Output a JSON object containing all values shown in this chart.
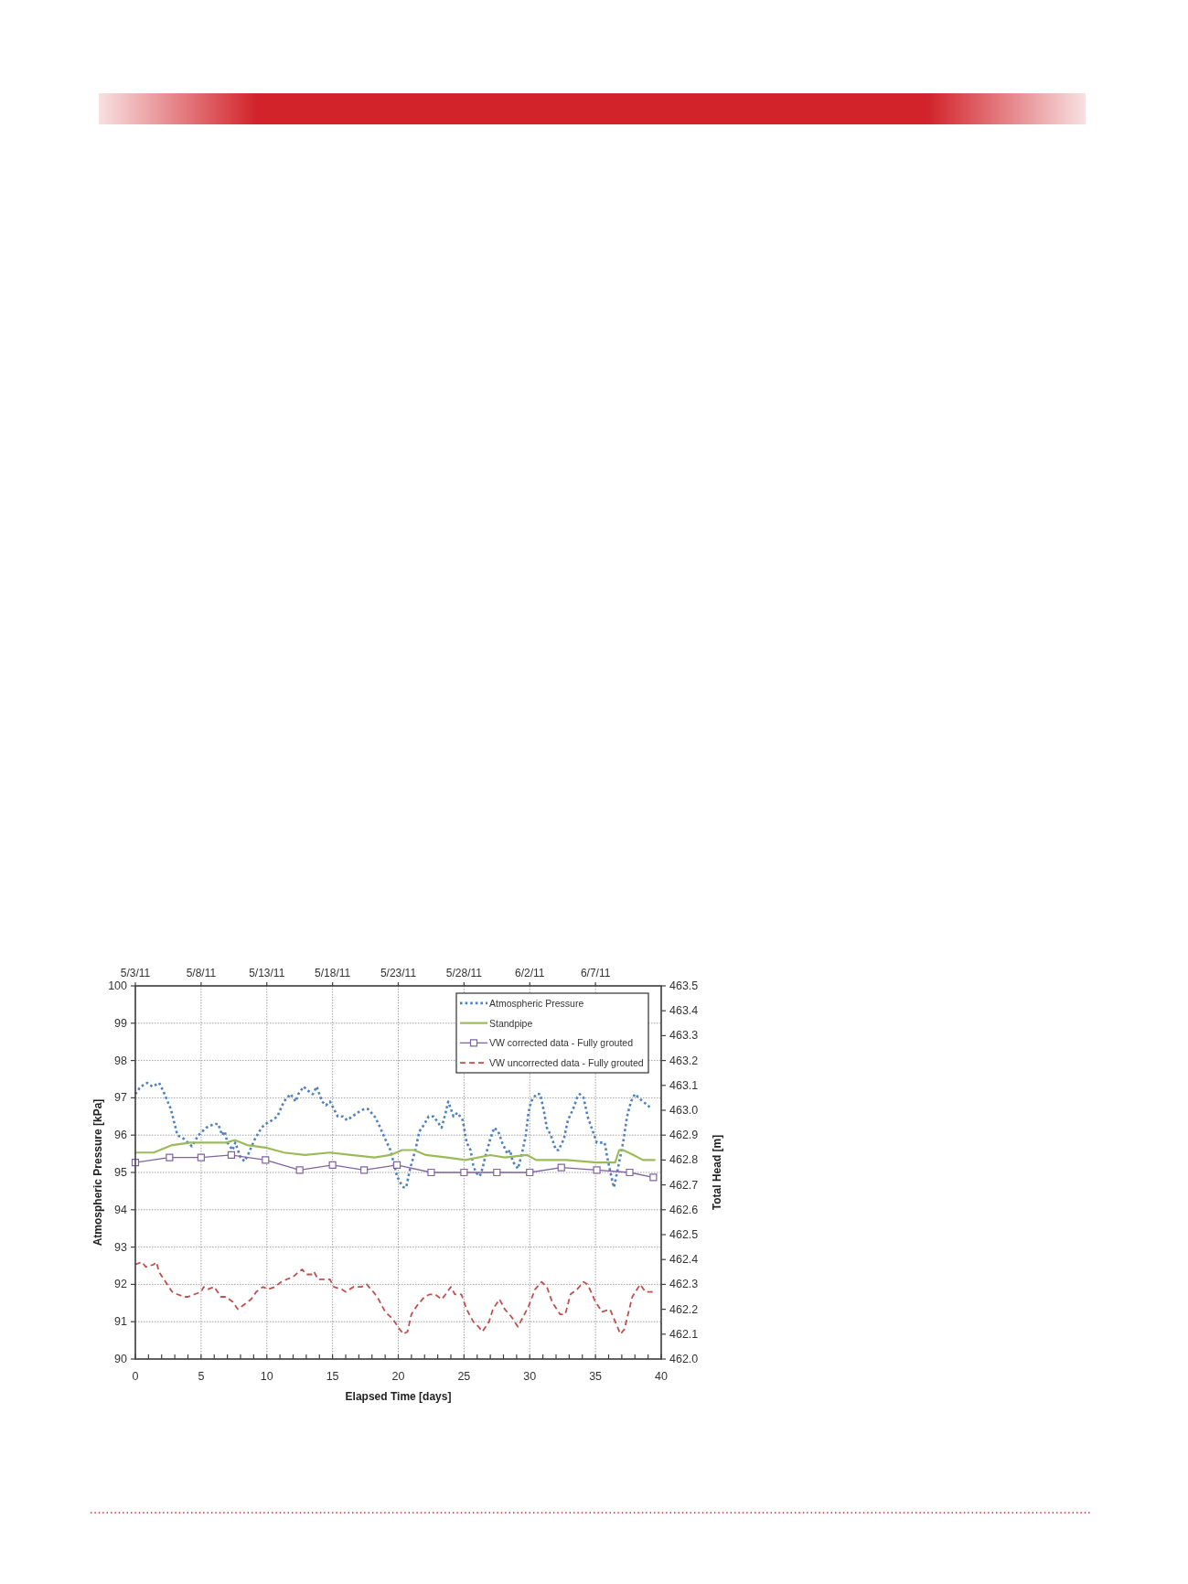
{
  "chart_data": {
    "type": "line",
    "xlabel": "Elapsed Time [days]",
    "ylabel": "Atmospheric Pressure [kPa]",
    "y2label": "Total Head [m]",
    "xlim": [
      0,
      40
    ],
    "xticks": [
      0,
      {
        "value": 1,
        "label": null
      },
      {
        "value": 2,
        "label": null
      },
      {
        "value": 3,
        "label": null
      },
      {
        "value": 4,
        "label": null
      },
      5,
      {
        "value": 6,
        "label": null
      },
      {
        "value": 7,
        "label": null
      },
      {
        "value": 8,
        "label": null
      },
      {
        "value": 9,
        "label": null
      },
      10,
      {
        "value": 11,
        "label": null
      },
      {
        "value": 12,
        "label": null
      },
      {
        "value": 13,
        "label": null
      },
      {
        "value": 14,
        "label": null
      },
      15,
      {
        "value": 16,
        "label": null
      },
      {
        "value": 17,
        "label": null
      },
      {
        "value": 18,
        "label": null
      },
      {
        "value": 19,
        "label": null
      },
      20,
      {
        "value": 21,
        "label": null
      },
      {
        "value": 22,
        "label": null
      },
      {
        "value": 23,
        "label": null
      },
      {
        "value": 24,
        "label": null
      },
      25,
      {
        "value": 26,
        "label": null
      },
      {
        "value": 27,
        "label": null
      },
      {
        "value": 28,
        "label": null
      },
      {
        "value": 29,
        "label": null
      },
      30,
      {
        "value": 31,
        "label": null
      },
      {
        "value": 32,
        "label": null
      },
      {
        "value": 33,
        "label": null
      },
      {
        "value": 34,
        "label": null
      },
      35,
      {
        "value": 36,
        "label": null
      },
      {
        "value": 37,
        "label": null
      },
      {
        "value": 38,
        "label": null
      },
      {
        "value": 39,
        "label": null
      },
      40
    ],
    "x2lim": [
      "--05-03",
      "--06-12"
    ],
    "x2ticks": [
      {
        "value": "--05-03",
        "label": "5/3/11"
      },
      {
        "value": "--05-08",
        "label": "5/8/11"
      },
      {
        "value": "--05-13",
        "label": "5/13/11"
      },
      {
        "value": "--05-18",
        "label": "5/18/11"
      },
      {
        "value": "--05-23",
        "label": "5/23/11"
      },
      {
        "value": "--05-28",
        "label": "5/28/11"
      },
      {
        "value": "--06-02",
        "label": "6/2/11"
      },
      {
        "value": "--06-07",
        "label": "6/7/11"
      }
    ],
    "ylim": [
      90,
      100
    ],
    "yticks": [
      90,
      91,
      92,
      93,
      94,
      95,
      96,
      97,
      98,
      99,
      100
    ],
    "y2lim": [
      462,
      463.5
    ],
    "y2ticks": [
      {
        "value": 462,
        "label": "462.0"
      },
      462.1,
      462.2,
      462.3,
      462.4,
      462.5,
      462.6,
      462.7,
      462.8,
      462.9,
      {
        "value": 463,
        "label": "463.0"
      },
      463.1,
      463.2,
      463.3,
      463.4,
      463.5
    ],
    "grid": true,
    "legend": "top right",
    "series": [
      {
        "name": "Atmospheric Pressure",
        "color": "#4f81bd",
        "line_style": "dotted",
        "x": [
          0,
          0.4,
          0.9,
          1.3,
          1.8,
          2.1,
          2.7,
          3.2,
          3.7,
          4.3,
          4.8,
          5.4,
          6,
          6.3,
          6.6,
          6.8,
          7,
          7.4,
          7.6,
          8,
          8.3,
          8.6,
          9.1,
          9.6,
          9.9,
          10.4,
          10.8,
          11.3,
          11.8,
          12.2,
          12.4,
          12.8,
          13.1,
          13.5,
          13.8,
          14.2,
          14.5,
          14.8,
          15.1,
          15.4,
          15.8,
          16.1,
          16.5,
          16.9,
          17.4,
          17.7,
          18.2,
          18.5,
          19,
          19.4,
          19.7,
          19.9,
          20.2,
          20.4,
          20.6,
          20.9,
          21.3,
          21.6,
          22,
          22.3,
          22.7,
          22.9,
          23.3,
          23.6,
          23.8,
          24.2,
          24.5,
          24.9,
          25.2,
          25.5,
          25.7,
          25.9,
          26.2,
          26.4,
          26.6,
          27,
          27.3,
          27.6,
          27.9,
          28.3,
          28.5,
          28.7,
          29.1,
          29.4,
          29.7,
          29.9,
          30.1,
          30.5,
          30.8,
          31.1,
          31.3,
          31.6,
          32,
          32.2,
          32.6,
          32.9,
          33.3,
          33.6,
          33.8,
          34.1,
          34.4,
          34.8,
          35.1,
          35.5,
          35.7,
          35.9,
          36.2,
          36.4,
          36.7,
          37.1,
          37.4,
          37.7,
          38,
          38.3,
          38.6,
          39,
          39.2
        ],
        "values": [
          97.1,
          97.3,
          97.4,
          97.3,
          97.4,
          97.2,
          96.7,
          96,
          95.9,
          95.7,
          96,
          96.2,
          96.3,
          96.3,
          96,
          96.1,
          95.8,
          95.6,
          95.8,
          95.4,
          95.3,
          95.5,
          95.9,
          96.2,
          96.3,
          96.4,
          96.5,
          96.9,
          97.1,
          96.9,
          97.1,
          97.3,
          97.2,
          97.1,
          97.3,
          96.9,
          96.8,
          96.9,
          96.7,
          96.5,
          96.5,
          96.4,
          96.5,
          96.6,
          96.7,
          96.7,
          96.5,
          96.3,
          95.9,
          95.6,
          95.2,
          94.9,
          94.7,
          94.6,
          94.6,
          95.1,
          95.6,
          96.1,
          96.3,
          96.5,
          96.5,
          96.4,
          96.2,
          96.6,
          96.9,
          96.5,
          96.6,
          96.4,
          95.8,
          95.6,
          95.2,
          95,
          94.9,
          95.1,
          95.4,
          95.9,
          96.2,
          96.1,
          95.8,
          95.5,
          95.6,
          95.3,
          95.1,
          95.5,
          96,
          96.6,
          96.9,
          97.1,
          97.1,
          96.6,
          96.2,
          96,
          95.6,
          95.6,
          95.9,
          96.4,
          96.7,
          97,
          97.1,
          97,
          96.5,
          96.1,
          95.8,
          95.8,
          95.8,
          95.4,
          94.9,
          94.6,
          95.1,
          95.8,
          96.5,
          96.9,
          97.1,
          97,
          96.9,
          96.8,
          96.7
        ]
      },
      {
        "name": "Standpipe",
        "color": "#9bbb59",
        "axis": "y2",
        "x": [
          0,
          1.4,
          2.8,
          4.2,
          5.5,
          6.9,
          7.6,
          8.5,
          9.9,
          11.3,
          12.9,
          14.8,
          16.4,
          18.2,
          19.4,
          20.3,
          21.2,
          22.1,
          23.7,
          25.1,
          27,
          28.1,
          29.8,
          30.5,
          32.8,
          35.1,
          36.5,
          36.8,
          37.1,
          37.9,
          38.6,
          39.5
        ],
        "values": [
          462.83,
          462.83,
          462.86,
          462.87,
          462.87,
          462.87,
          462.88,
          462.86,
          462.85,
          462.83,
          462.82,
          462.83,
          462.82,
          462.81,
          462.82,
          462.84,
          462.84,
          462.82,
          462.81,
          462.8,
          462.82,
          462.81,
          462.82,
          462.8,
          462.8,
          462.79,
          462.79,
          462.84,
          462.84,
          462.82,
          462.8,
          462.8
        ]
      },
      {
        "name": "VW corrected data - Fully grouted",
        "color": "#8064a2",
        "axis": "y2",
        "marker": "square",
        "x": [
          0,
          2.6,
          5,
          7.3,
          9.9,
          12.5,
          15,
          17.4,
          19.9,
          22.5,
          25,
          27.5,
          30,
          32.4,
          35.1,
          37.6,
          39.4
        ],
        "values": [
          462.79,
          462.81,
          462.81,
          462.82,
          462.8,
          462.76,
          462.78,
          462.76,
          462.78,
          462.75,
          462.75,
          462.75,
          462.75,
          462.77,
          462.76,
          462.75,
          462.73
        ]
      },
      {
        "name": "VW uncorrected data - Fully grouted",
        "color": "#c0504d",
        "axis": "y2",
        "line_style": "dashed",
        "x": [
          0,
          0.5,
          0.8,
          1.4,
          1.6,
          1.8,
          2.3,
          2.8,
          3.2,
          3.7,
          4,
          4.5,
          5,
          5.2,
          5.5,
          6,
          6.5,
          6.9,
          7.4,
          7.8,
          8.3,
          8.8,
          9.2,
          9.7,
          10.1,
          10.6,
          11.1,
          11.5,
          12,
          12.4,
          12.7,
          13,
          13.5,
          13.6,
          13.9,
          14.4,
          14.8,
          15.1,
          15.7,
          16,
          16.6,
          17.2,
          17.6,
          18.1,
          18.5,
          19,
          19.6,
          20.1,
          20.4,
          20.7,
          21,
          21.5,
          22,
          22.4,
          22.8,
          23.3,
          23.6,
          24,
          24.3,
          24.8,
          25.2,
          25.7,
          26.1,
          26.4,
          26.9,
          27.2,
          27.7,
          28.1,
          28.6,
          29.1,
          29.5,
          29.9,
          30.4,
          30.9,
          31.3,
          31.7,
          32.3,
          32.7,
          33.1,
          33.6,
          34.1,
          34.4,
          35,
          35.5,
          36.1,
          36.5,
          36.9,
          37.2,
          37.8,
          38.4,
          38.8,
          39.4
        ],
        "values": [
          462.38,
          462.39,
          462.37,
          462.38,
          462.39,
          462.35,
          462.31,
          462.27,
          462.26,
          462.25,
          462.25,
          462.26,
          462.27,
          462.29,
          462.28,
          462.29,
          462.25,
          462.25,
          462.23,
          462.2,
          462.22,
          462.24,
          462.27,
          462.29,
          462.28,
          462.29,
          462.31,
          462.32,
          462.33,
          462.35,
          462.36,
          462.34,
          462.34,
          462.35,
          462.32,
          462.32,
          462.32,
          462.29,
          462.28,
          462.27,
          462.29,
          462.29,
          462.3,
          462.27,
          462.24,
          462.19,
          462.16,
          462.12,
          462.1,
          462.11,
          462.18,
          462.22,
          462.25,
          462.26,
          462.26,
          462.24,
          462.26,
          462.29,
          462.26,
          462.26,
          462.2,
          462.15,
          462.13,
          462.11,
          462.15,
          462.2,
          462.24,
          462.2,
          462.17,
          462.13,
          462.17,
          462.21,
          462.28,
          462.31,
          462.29,
          462.23,
          462.18,
          462.18,
          462.26,
          462.28,
          462.31,
          462.3,
          462.23,
          462.19,
          462.2,
          462.15,
          462.1,
          462.12,
          462.25,
          462.3,
          462.27,
          462.27
        ]
      }
    ]
  }
}
